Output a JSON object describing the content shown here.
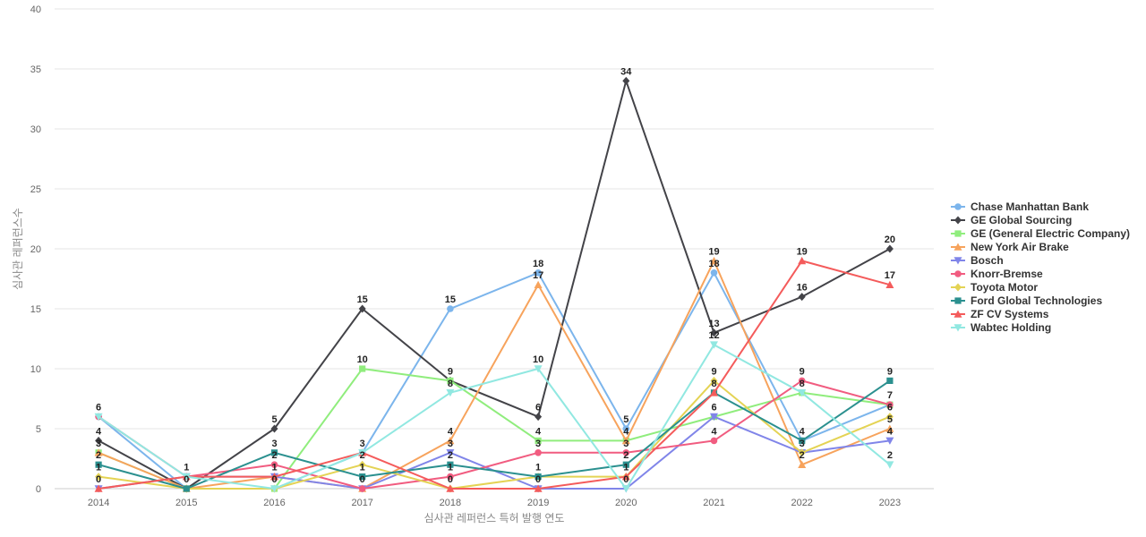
{
  "chart_data": {
    "type": "line",
    "title": "",
    "xlabel": "심사관 레퍼런스 특허 발행 연도",
    "ylabel": "심사관 레퍼런스수",
    "x": [
      "2014",
      "2015",
      "2016",
      "2017",
      "2018",
      "2019",
      "2020",
      "2021",
      "2022",
      "2023"
    ],
    "ylim": [
      0,
      40
    ],
    "yticks": [
      0,
      5,
      10,
      15,
      20,
      25,
      30,
      35,
      40
    ],
    "grid": true,
    "legend_position": "right",
    "series": [
      {
        "name": "Chase Manhattan Bank",
        "color": "#7cb5ec",
        "marker": "circle",
        "values": [
          6,
          0,
          0,
          3,
          15,
          18,
          5,
          18,
          4,
          7
        ]
      },
      {
        "name": "GE Global Sourcing",
        "color": "#434348",
        "marker": "diamond",
        "values": [
          4,
          0,
          5,
          15,
          9,
          6,
          34,
          13,
          16,
          20
        ]
      },
      {
        "name": "GE (General Electric Company)",
        "color": "#90ed7d",
        "marker": "square",
        "values": [
          3,
          0,
          0,
          10,
          9,
          4,
          4,
          6,
          8,
          7
        ]
      },
      {
        "name": "New York Air Brake",
        "color": "#f7a35c",
        "marker": "triangle",
        "values": [
          3,
          0,
          1,
          0,
          4,
          17,
          4,
          19,
          2,
          5
        ]
      },
      {
        "name": "Bosch",
        "color": "#8085e9",
        "marker": "triangle-down",
        "values": [
          0,
          1,
          1,
          0,
          3,
          0,
          0,
          6,
          3,
          4
        ]
      },
      {
        "name": "Knorr-Bremse",
        "color": "#f15c80",
        "marker": "circle",
        "values": [
          6,
          1,
          2,
          0,
          1,
          3,
          3,
          4,
          9,
          7
        ]
      },
      {
        "name": "Toyota Motor",
        "color": "#e4d354",
        "marker": "diamond",
        "values": [
          1,
          0,
          0,
          2,
          0,
          1,
          1,
          9,
          3,
          6
        ]
      },
      {
        "name": "Ford Global Technologies",
        "color": "#2b908f",
        "marker": "square",
        "values": [
          2,
          0,
          3,
          1,
          2,
          1,
          2,
          8,
          4,
          9
        ]
      },
      {
        "name": "ZF CV Systems",
        "color": "#f45b5b",
        "marker": "triangle",
        "values": [
          0,
          1,
          1,
          3,
          0,
          0,
          1,
          8,
          19,
          17
        ]
      },
      {
        "name": "Wabtec Holding",
        "color": "#91e8e1",
        "marker": "triangle-down",
        "values": [
          6,
          1,
          0,
          3,
          8,
          10,
          0,
          12,
          8,
          2
        ]
      }
    ],
    "data_labels": [
      {
        "x": "2014",
        "labels": [
          "6",
          "4",
          "3",
          "2",
          "1",
          "0"
        ]
      },
      {
        "x": "2015",
        "labels": [
          "1",
          "0"
        ]
      },
      {
        "x": "2016",
        "labels": [
          "5",
          "3",
          "2",
          "1",
          "0"
        ]
      },
      {
        "x": "2017",
        "labels": [
          "15",
          "10",
          "3",
          "2",
          "1",
          "0"
        ]
      },
      {
        "x": "2018",
        "labels": [
          "15",
          "9",
          "8",
          "4",
          "3",
          "2",
          "1",
          "0"
        ]
      },
      {
        "x": "2019",
        "labels": [
          "18",
          "17",
          "10",
          "6",
          "4",
          "3",
          "1",
          "0"
        ]
      },
      {
        "x": "2020",
        "labels": [
          "34",
          "5",
          "4",
          "3",
          "2",
          "1",
          "0"
        ]
      },
      {
        "x": "2021",
        "labels": [
          "19",
          "18",
          "13",
          "12",
          "9",
          "8",
          "6",
          "4"
        ]
      },
      {
        "x": "2022",
        "labels": [
          "19",
          "16",
          "9",
          "8",
          "4",
          "3",
          "2"
        ]
      },
      {
        "x": "2023",
        "labels": [
          "20",
          "17",
          "9",
          "7",
          "6",
          "5",
          "4",
          "2"
        ]
      }
    ]
  }
}
